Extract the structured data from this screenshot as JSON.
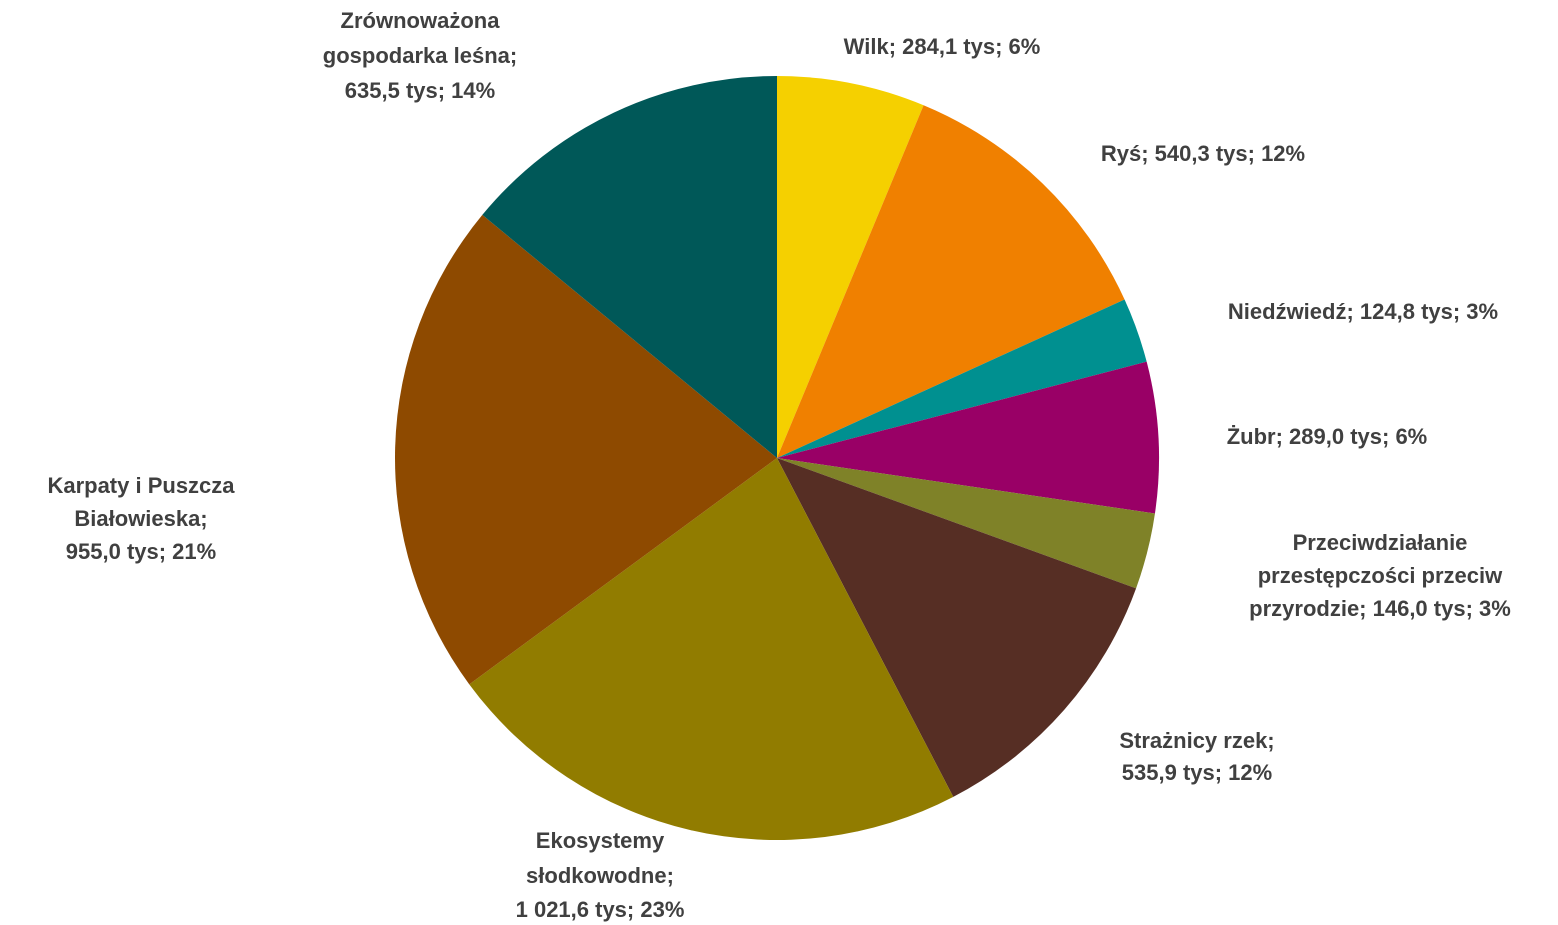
{
  "chart_data": {
    "type": "pie",
    "values": [
      284.1,
      540.3,
      124.8,
      289.0,
      146.0,
      535.9,
      1021.6,
      955.0,
      635.5
    ],
    "value_labels": [
      [
        "Wilk;  284,1 tys; 6%"
      ],
      [
        "Ryś;  540,3 tys; 12%"
      ],
      [
        "Niedźwiedź;  124,8 tys; 3%"
      ],
      [
        "Żubr;  289,0 tys; 6%"
      ],
      [
        "Przeciwdziałanie",
        "przestępczości przeciw",
        "przyrodzie;  146,0 tys; 3%"
      ],
      [
        "Strażnicy rzek;",
        "535,9 tys; 12%"
      ],
      [
        "Ekosystemy",
        "słodkowodne;",
        "1 021,6 tys; 23%"
      ],
      [
        "Karpaty i Puszcza",
        "Białowieska;",
        "955,0 tys; 21%"
      ],
      [
        "Zrównoważona",
        "gospodarka leśna;",
        "635,5 tys; 14%"
      ]
    ],
    "colors": [
      "#f5d000",
      "#f08000",
      "#009090",
      "#990066",
      "#7f8228",
      "#562e24",
      "#917c00",
      "#8e4a00",
      "#005858"
    ]
  }
}
